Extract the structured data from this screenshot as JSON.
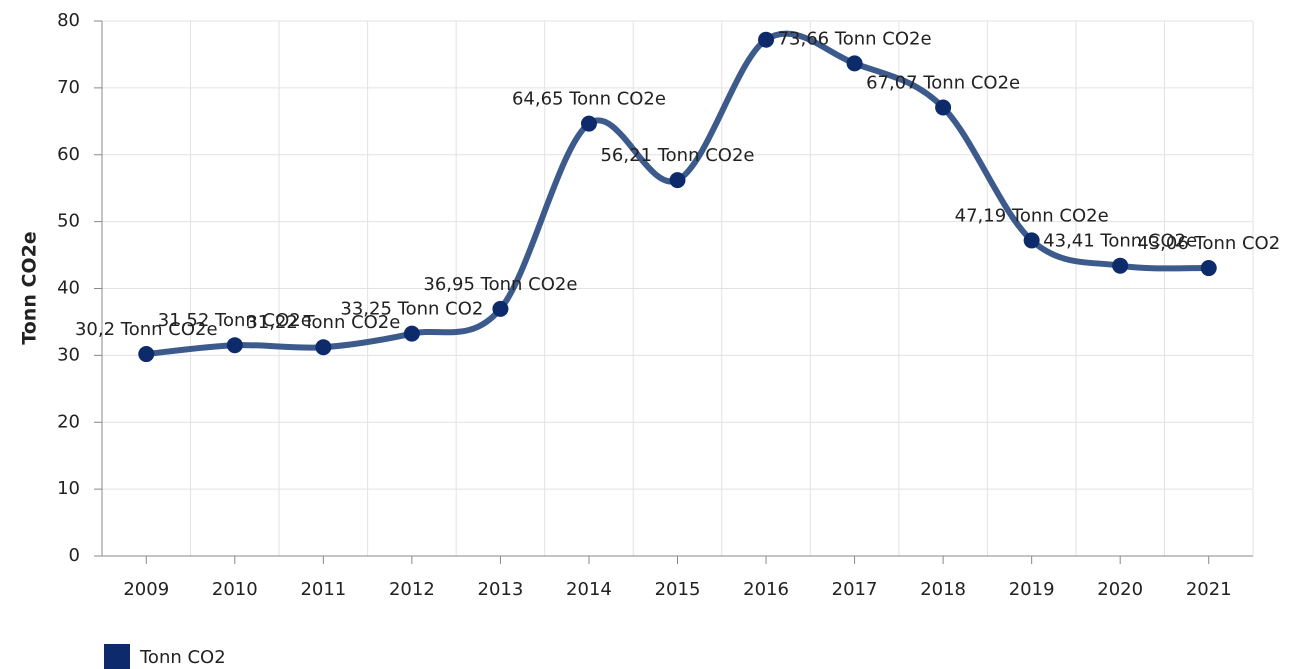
{
  "chart_data": {
    "type": "line",
    "y_label": "Tonn CO2e",
    "categories": [
      "2009",
      "2010",
      "2011",
      "2012",
      "2013",
      "2014",
      "2015",
      "2016",
      "2017",
      "2018",
      "2019",
      "2020",
      "2021"
    ],
    "series": [
      {
        "name": "Tonn CO2",
        "color": "#0d2a6b",
        "line_color": "#3d5a8c",
        "values": [
          30.2,
          31.52,
          31.22,
          33.25,
          36.95,
          64.65,
          56.21,
          77.2,
          73.66,
          67.07,
          47.19,
          43.41,
          43.06
        ],
        "value_labels": [
          "30,2 Tonn CO2e",
          "31,52 Tonn CO2e",
          "31,22 Tonn CO2e",
          "33,25 Tonn CO2",
          "36,95 Tonn CO2e",
          "64,65 Tonn CO2e",
          "56,21 Tonn CO2e",
          null,
          "73,66 Tonn CO2e",
          "67,07 Tonn CO2e",
          "47,19 Tonn CO2e",
          "43,41 Tonn CO2e",
          "43,06 Tonn CO2"
        ]
      }
    ],
    "ylim": [
      0,
      80
    ],
    "yticks": [
      0,
      10,
      20,
      30,
      40,
      50,
      60,
      70,
      80
    ],
    "grid": true,
    "smooth": true,
    "legend": "bottom-left"
  }
}
